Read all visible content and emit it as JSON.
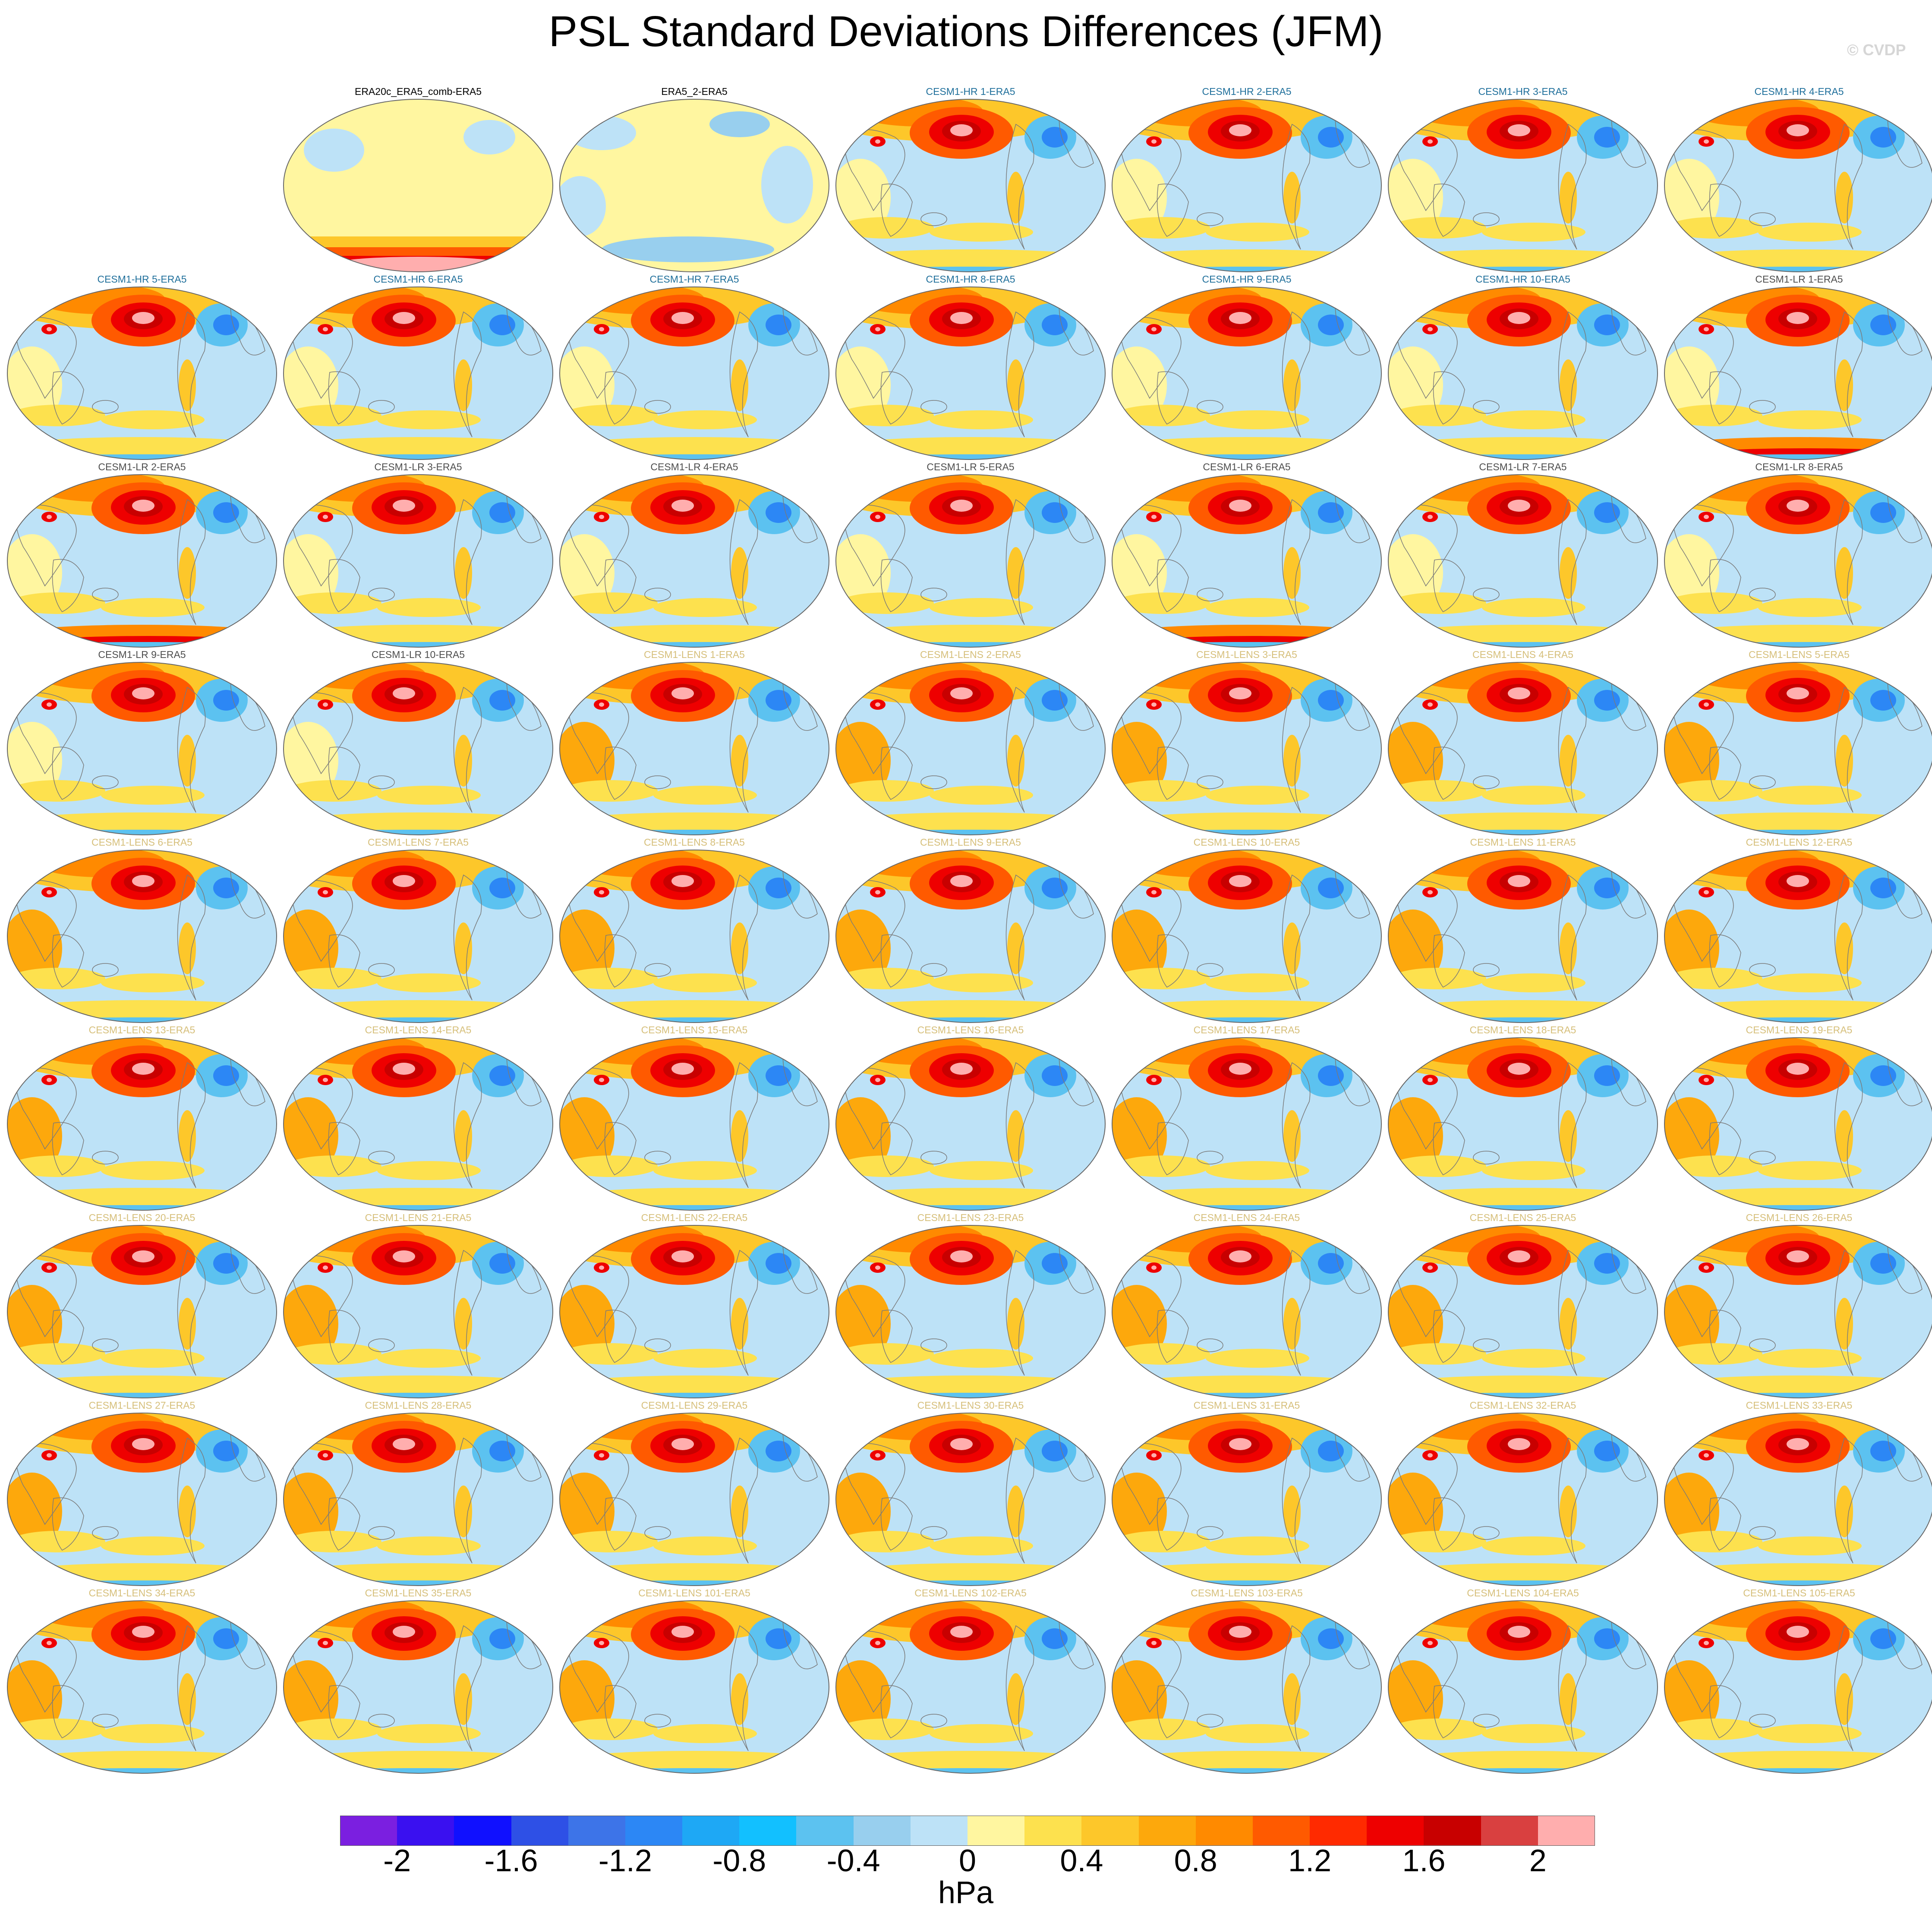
{
  "title": "PSL Standard Deviations Differences (JFM)",
  "credit": "© CVDP",
  "colors": {
    "obs_title": "#000000",
    "hr_title": "#1f6f9b",
    "lr_title": "#4d4d4d",
    "lens_title": "#d6bf7a"
  },
  "panels": [
    {
      "label": "ERA20c_ERA5_comb-ERA5",
      "group": "obs",
      "pattern": "south_red"
    },
    {
      "label": "ERA5_2-ERA5",
      "group": "obs",
      "pattern": "calm"
    },
    {
      "label": "CESM1-HR 1-ERA5",
      "group": "hr",
      "pattern": "model"
    },
    {
      "label": "CESM1-HR 2-ERA5",
      "group": "hr",
      "pattern": "model"
    },
    {
      "label": "CESM1-HR 3-ERA5",
      "group": "hr",
      "pattern": "model"
    },
    {
      "label": "CESM1-HR 4-ERA5",
      "group": "hr",
      "pattern": "model"
    },
    {
      "label": "CESM1-HR 5-ERA5",
      "group": "hr",
      "pattern": "model"
    },
    {
      "label": "CESM1-HR 6-ERA5",
      "group": "hr",
      "pattern": "model"
    },
    {
      "label": "CESM1-HR 7-ERA5",
      "group": "hr",
      "pattern": "model"
    },
    {
      "label": "CESM1-HR 8-ERA5",
      "group": "hr",
      "pattern": "model"
    },
    {
      "label": "CESM1-HR 9-ERA5",
      "group": "hr",
      "pattern": "model"
    },
    {
      "label": "CESM1-HR 10-ERA5",
      "group": "hr",
      "pattern": "model"
    },
    {
      "label": "CESM1-LR 1-ERA5",
      "group": "lr",
      "pattern": "lr_south"
    },
    {
      "label": "CESM1-LR 2-ERA5",
      "group": "lr",
      "pattern": "lr_south"
    },
    {
      "label": "CESM1-LR 3-ERA5",
      "group": "lr",
      "pattern": "lr"
    },
    {
      "label": "CESM1-LR 4-ERA5",
      "group": "lr",
      "pattern": "lr"
    },
    {
      "label": "CESM1-LR 5-ERA5",
      "group": "lr",
      "pattern": "lr"
    },
    {
      "label": "CESM1-LR 6-ERA5",
      "group": "lr",
      "pattern": "lr_south"
    },
    {
      "label": "CESM1-LR 7-ERA5",
      "group": "lr",
      "pattern": "lr"
    },
    {
      "label": "CESM1-LR 8-ERA5",
      "group": "lr",
      "pattern": "lr"
    },
    {
      "label": "CESM1-LR 9-ERA5",
      "group": "lr",
      "pattern": "lr"
    },
    {
      "label": "CESM1-LR 10-ERA5",
      "group": "lr",
      "pattern": "lr"
    },
    {
      "label": "CESM1-LENS 1-ERA5",
      "group": "lens",
      "pattern": "lens"
    },
    {
      "label": "CESM1-LENS 2-ERA5",
      "group": "lens",
      "pattern": "lens"
    },
    {
      "label": "CESM1-LENS 3-ERA5",
      "group": "lens",
      "pattern": "lens"
    },
    {
      "label": "CESM1-LENS 4-ERA5",
      "group": "lens",
      "pattern": "lens"
    },
    {
      "label": "CESM1-LENS 5-ERA5",
      "group": "lens",
      "pattern": "lens"
    },
    {
      "label": "CESM1-LENS 6-ERA5",
      "group": "lens",
      "pattern": "lens"
    },
    {
      "label": "CESM1-LENS 7-ERA5",
      "group": "lens",
      "pattern": "lens"
    },
    {
      "label": "CESM1-LENS 8-ERA5",
      "group": "lens",
      "pattern": "lens"
    },
    {
      "label": "CESM1-LENS 9-ERA5",
      "group": "lens",
      "pattern": "lens"
    },
    {
      "label": "CESM1-LENS 10-ERA5",
      "group": "lens",
      "pattern": "lens"
    },
    {
      "label": "CESM1-LENS 11-ERA5",
      "group": "lens",
      "pattern": "lens"
    },
    {
      "label": "CESM1-LENS 12-ERA5",
      "group": "lens",
      "pattern": "lens"
    },
    {
      "label": "CESM1-LENS 13-ERA5",
      "group": "lens",
      "pattern": "lens"
    },
    {
      "label": "CESM1-LENS 14-ERA5",
      "group": "lens",
      "pattern": "lens"
    },
    {
      "label": "CESM1-LENS 15-ERA5",
      "group": "lens",
      "pattern": "lens"
    },
    {
      "label": "CESM1-LENS 16-ERA5",
      "group": "lens",
      "pattern": "lens"
    },
    {
      "label": "CESM1-LENS 17-ERA5",
      "group": "lens",
      "pattern": "lens"
    },
    {
      "label": "CESM1-LENS 18-ERA5",
      "group": "lens",
      "pattern": "lens"
    },
    {
      "label": "CESM1-LENS 19-ERA5",
      "group": "lens",
      "pattern": "lens"
    },
    {
      "label": "CESM1-LENS 20-ERA5",
      "group": "lens",
      "pattern": "lens"
    },
    {
      "label": "CESM1-LENS 21-ERA5",
      "group": "lens",
      "pattern": "lens"
    },
    {
      "label": "CESM1-LENS 22-ERA5",
      "group": "lens",
      "pattern": "lens"
    },
    {
      "label": "CESM1-LENS 23-ERA5",
      "group": "lens",
      "pattern": "lens"
    },
    {
      "label": "CESM1-LENS 24-ERA5",
      "group": "lens",
      "pattern": "lens"
    },
    {
      "label": "CESM1-LENS 25-ERA5",
      "group": "lens",
      "pattern": "lens"
    },
    {
      "label": "CESM1-LENS 26-ERA5",
      "group": "lens",
      "pattern": "lens"
    },
    {
      "label": "CESM1-LENS 27-ERA5",
      "group": "lens",
      "pattern": "lens"
    },
    {
      "label": "CESM1-LENS 28-ERA5",
      "group": "lens",
      "pattern": "lens"
    },
    {
      "label": "CESM1-LENS 29-ERA5",
      "group": "lens",
      "pattern": "lens"
    },
    {
      "label": "CESM1-LENS 30-ERA5",
      "group": "lens",
      "pattern": "lens"
    },
    {
      "label": "CESM1-LENS 31-ERA5",
      "group": "lens",
      "pattern": "lens"
    },
    {
      "label": "CESM1-LENS 32-ERA5",
      "group": "lens",
      "pattern": "lens"
    },
    {
      "label": "CESM1-LENS 33-ERA5",
      "group": "lens",
      "pattern": "lens"
    },
    {
      "label": "CESM1-LENS 34-ERA5",
      "group": "lens",
      "pattern": "lens"
    },
    {
      "label": "CESM1-LENS 35-ERA5",
      "group": "lens",
      "pattern": "lens"
    },
    {
      "label": "CESM1-LENS 101-ERA5",
      "group": "lens",
      "pattern": "lens"
    },
    {
      "label": "CESM1-LENS 102-ERA5",
      "group": "lens",
      "pattern": "lens"
    },
    {
      "label": "CESM1-LENS 103-ERA5",
      "group": "lens",
      "pattern": "lens"
    },
    {
      "label": "CESM1-LENS 104-ERA5",
      "group": "lens",
      "pattern": "lens"
    },
    {
      "label": "CESM1-LENS 105-ERA5",
      "group": "lens",
      "pattern": "lens"
    }
  ],
  "colorbar": {
    "colors": [
      "#7b1fe0",
      "#3a10f0",
      "#1010ff",
      "#2e50e6",
      "#3d74e8",
      "#2c87f5",
      "#1ea8f5",
      "#12c0ff",
      "#5cc2f0",
      "#98cfee",
      "#bde2f7",
      "#fff6a0",
      "#fde14e",
      "#fdc72a",
      "#fda80c",
      "#ff8a00",
      "#ff5a00",
      "#ff2a00",
      "#ee0000",
      "#c80000",
      "#d94040",
      "#ffaeae"
    ],
    "labels": [
      "-2",
      "-1.6",
      "-1.2",
      "-0.8",
      "-0.4",
      "0",
      "0.4",
      "0.8",
      "1.2",
      "1.6",
      "2"
    ],
    "units": "hPa"
  }
}
